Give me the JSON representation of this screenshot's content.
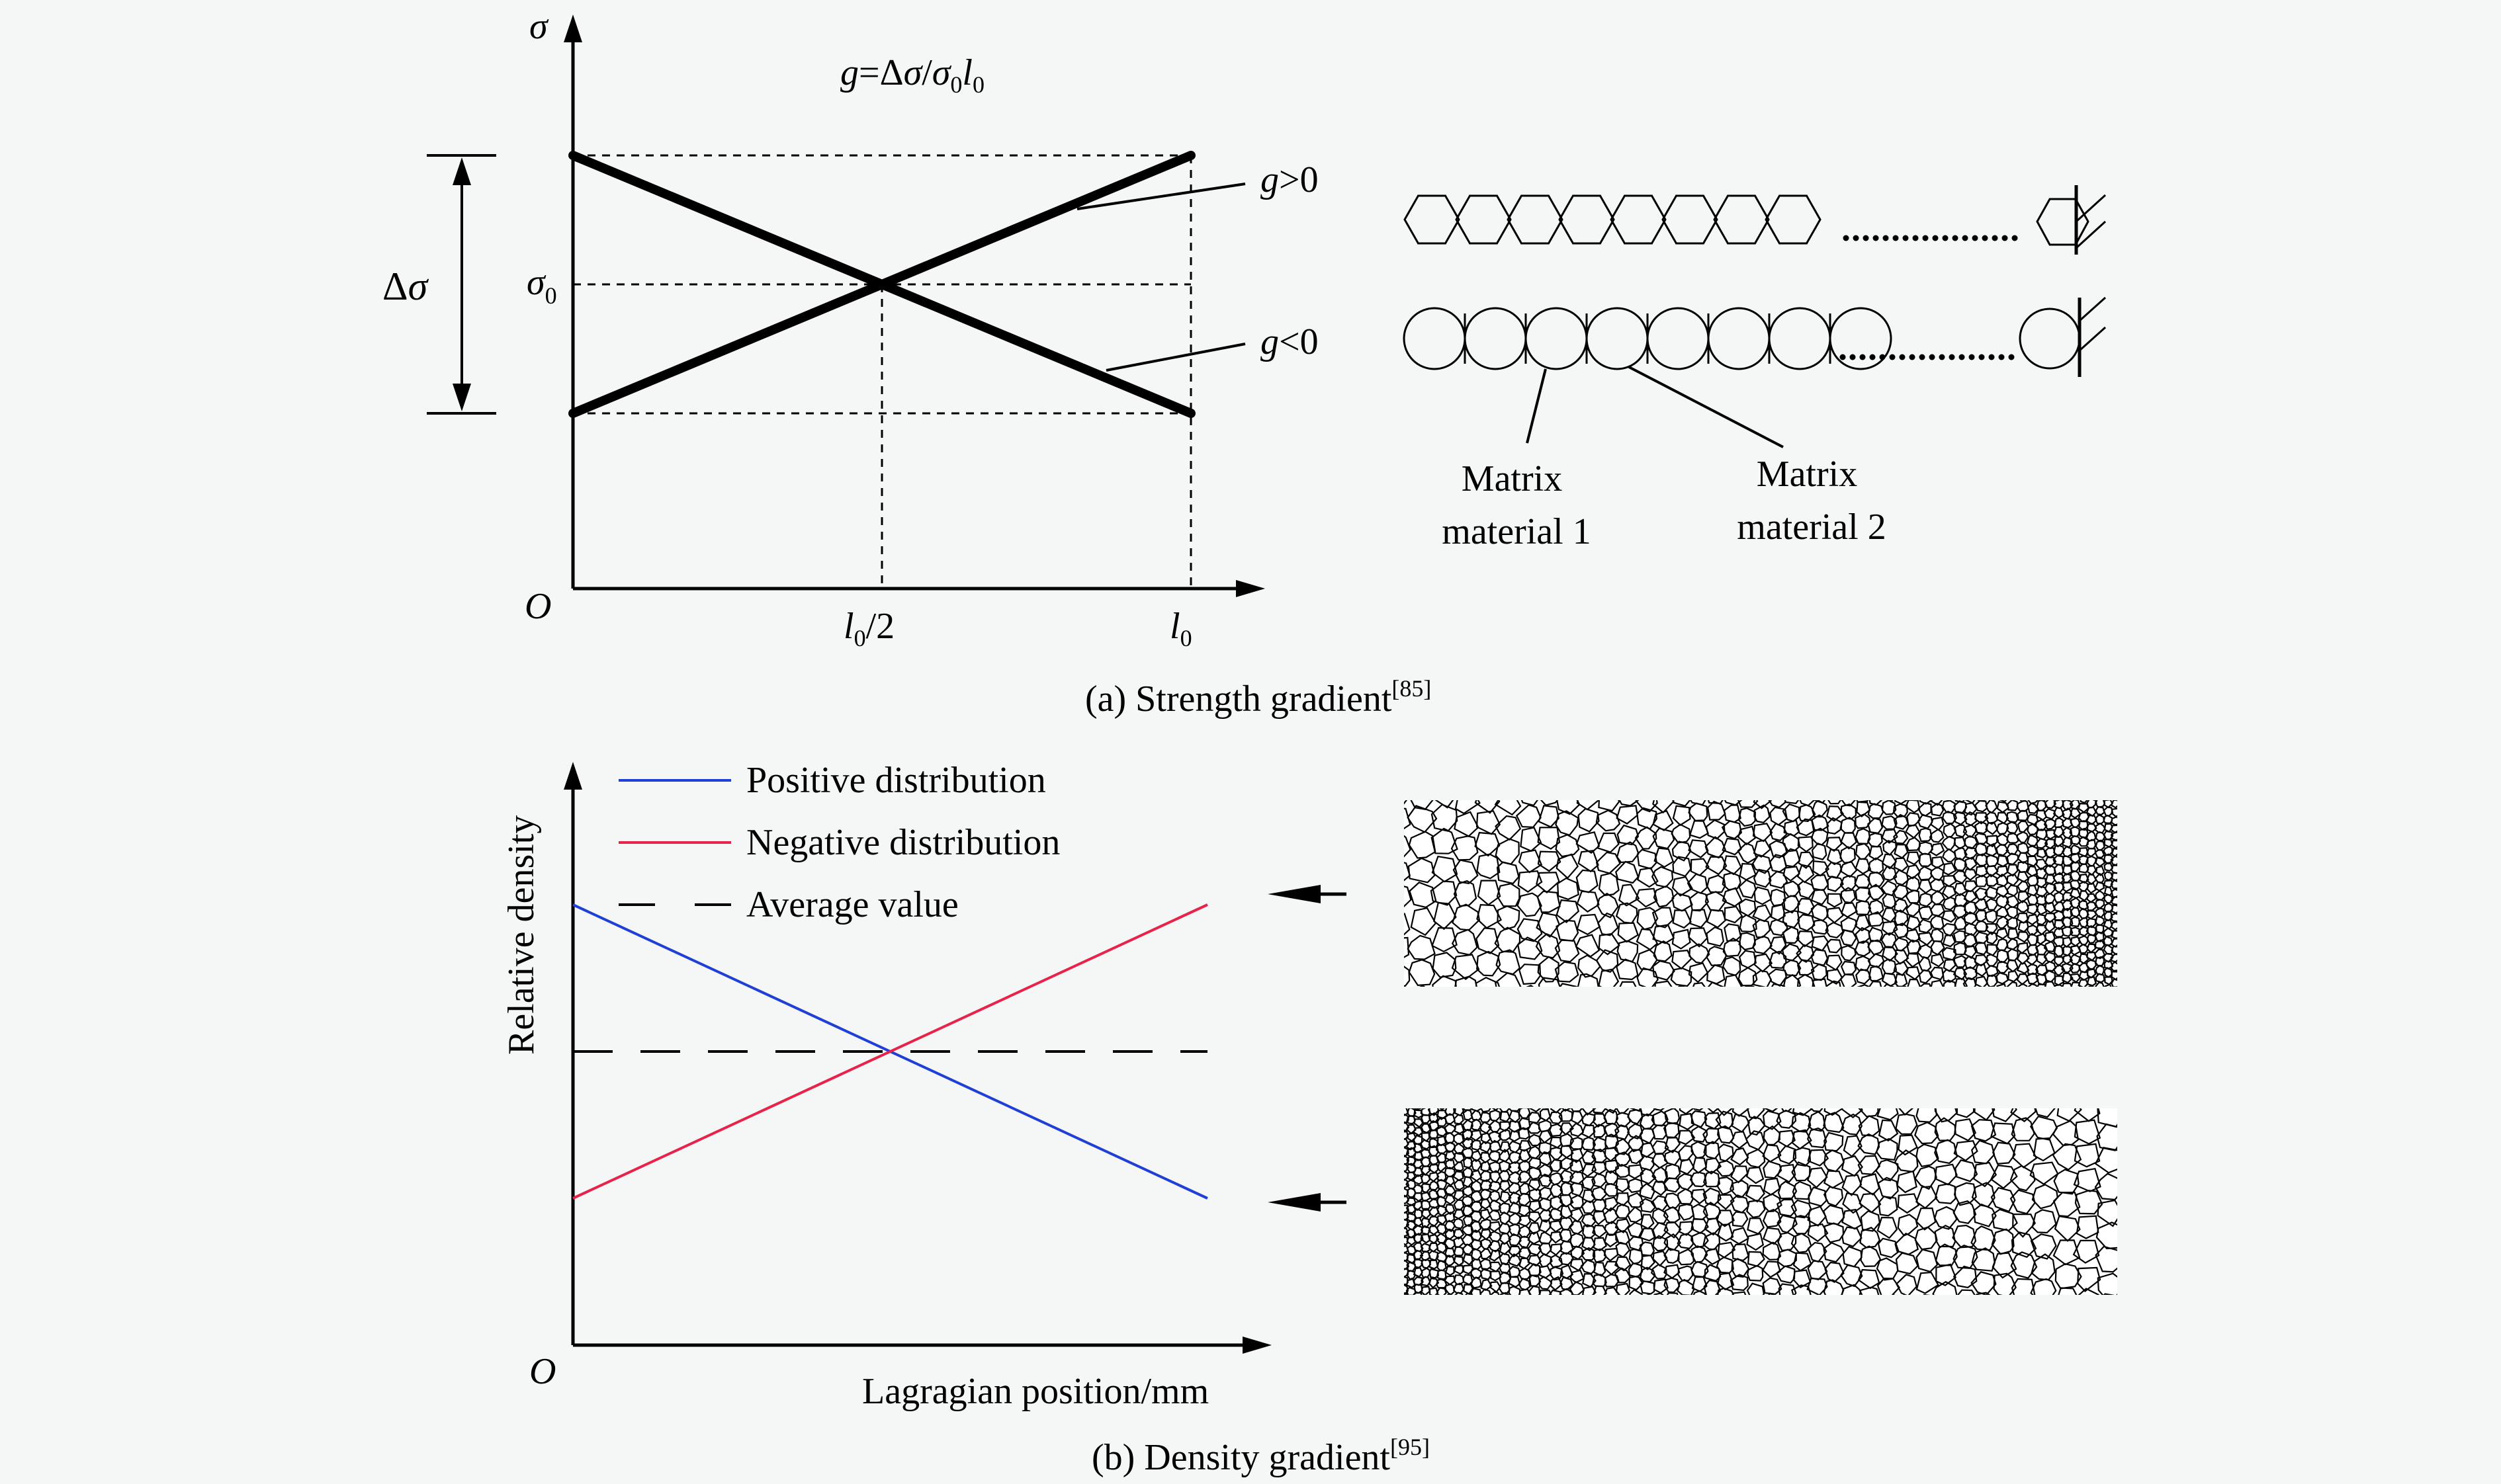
{
  "panel_a": {
    "axes": {
      "y_symbol": "σ",
      "origin": "O",
      "sigma0_label": "σ",
      "sigma0_sub": "0"
    },
    "formula": {
      "g": "g",
      "eq": "=Δ",
      "sigma1": "σ",
      "slash": "/",
      "sigma2": "σ",
      "sub0a": "0",
      "l": "l",
      "sub0b": "0"
    },
    "ticks": {
      "half_l": "l",
      "half_sub": "0",
      "half_tail": "/2",
      "l0": "l",
      "l0_sub": "0"
    },
    "delta_sigma": {
      "delta": "Δ",
      "sigma": "σ"
    },
    "labels": {
      "g_pos": {
        "g": "g",
        "rest": ">0"
      },
      "g_neg": {
        "g": "g",
        "rest": "<0"
      }
    },
    "matrix1": [
      "Matrix",
      "material 1"
    ],
    "matrix2": [
      "Matrix",
      "material 2"
    ],
    "caption": {
      "text": "(a) Strength gradient",
      "ref": "[85]"
    }
  },
  "panel_b": {
    "y_label": "Relative density",
    "x_label": "Lagragian position/mm",
    "origin": "O",
    "legend": [
      {
        "label": "Positive distribution",
        "color": "#1f3fd6",
        "style": "solid"
      },
      {
        "label": "Negative distribution",
        "color": "#e8234a",
        "style": "solid"
      },
      {
        "label": "Average value",
        "color": "#000000",
        "style": "dashed"
      }
    ],
    "caption": {
      "text": "(b) Density gradient",
      "ref": "[95]"
    }
  },
  "colors": {
    "background": "#f5f6f6",
    "ink": "#000000",
    "positive": "#1f3fd6",
    "negative": "#e8234a"
  }
}
